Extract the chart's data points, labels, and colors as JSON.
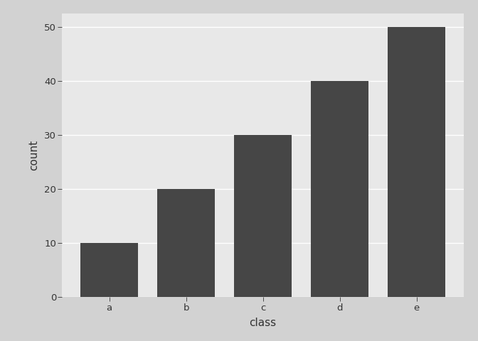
{
  "categories": [
    "a",
    "b",
    "c",
    "d",
    "e"
  ],
  "values": [
    10,
    20,
    30,
    40,
    50
  ],
  "bar_color": "#464646",
  "xlabel": "class",
  "ylabel": "count",
  "ylim": [
    0,
    52.5
  ],
  "yticks": [
    0,
    10,
    20,
    30,
    40,
    50
  ],
  "panel_bg": "#e8e8e8",
  "outer_bg": "#d2d2d2",
  "grid_color": "#ffffff",
  "axis_label_fontsize": 11,
  "tick_fontsize": 9.5,
  "bar_width": 0.75
}
